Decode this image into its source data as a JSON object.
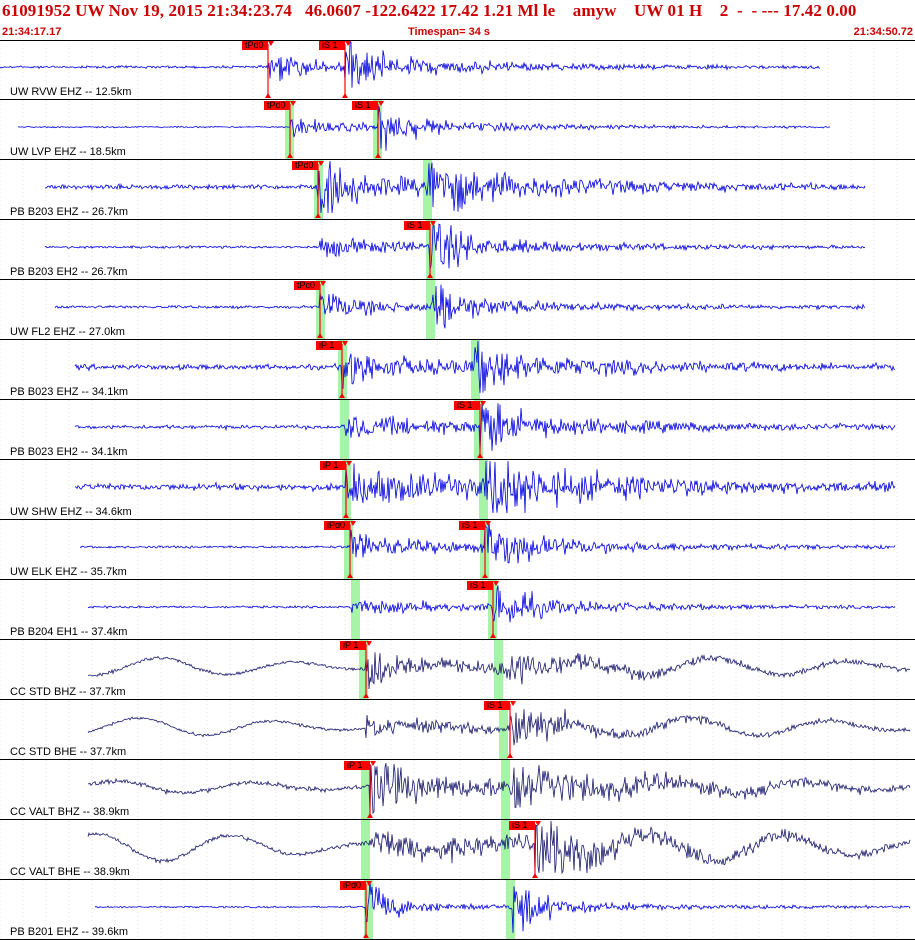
{
  "header": {
    "title": "61091952 UW Nov 19, 2015 21:34:23.74   46.0607 -122.6422 17.42 1.21 Ml le    amyw    UW 01 H    2  -  - --- 17.42 0.00",
    "start_time": "21:34:17.17",
    "timespan": "Timespan=  34 s",
    "end_time": "21:34:50.72"
  },
  "colors": {
    "accent_red": "#cc0000",
    "trace_blue": "#0000e0",
    "trace_navy": "#1a1a6e",
    "window_green": "#a6f5a6",
    "pick_red": "#ff0000"
  },
  "panels": [
    {
      "label": "UW RVW EHZ -- 12.5km",
      "color": "blue",
      "trace_start": 0,
      "trace_end": 820,
      "p_arrival": 268,
      "s_arrival": 345,
      "p_label": "tPd0",
      "s_label": "iS 1",
      "green": [],
      "p_amp": 8,
      "s_amp": 18,
      "coda": 6,
      "noise": 1.0
    },
    {
      "label": "UW LVP EHZ -- 18.5km",
      "color": "blue",
      "trace_start": 18,
      "trace_end": 830,
      "p_arrival": 290,
      "s_arrival": 378,
      "p_label": "tPd0",
      "s_label": "iS 1",
      "green": [
        289,
        377
      ],
      "p_amp": 6,
      "s_amp": 20,
      "coda": 4,
      "noise": 0.6
    },
    {
      "label": "PB B203 EHZ -- 26.7km",
      "color": "blue",
      "trace_start": 45,
      "trace_end": 865,
      "p_arrival": 318,
      "s_arrival": 427,
      "p_label": "tPd0",
      "s_label": "",
      "green": [
        318,
        427
      ],
      "p_amp": 22,
      "s_amp": 24,
      "coda": 10,
      "noise": 2.0
    },
    {
      "label": "PB B203 EH2 -- 26.7km",
      "color": "blue",
      "trace_start": 45,
      "trace_end": 865,
      "p_arrival": 320,
      "s_arrival": 430,
      "p_label": "",
      "s_label": "iS 1",
      "green": [
        430
      ],
      "p_amp": 3,
      "s_amp": 22,
      "coda": 6,
      "noise": 1.0
    },
    {
      "label": "UW FL2 EHZ -- 27.0km",
      "color": "blue",
      "trace_start": 55,
      "trace_end": 865,
      "p_arrival": 320,
      "s_arrival": 432,
      "p_label": "tPc0",
      "s_label": "",
      "green": [
        320,
        430
      ],
      "p_amp": 12,
      "s_amp": 20,
      "coda": 5,
      "noise": 1.2
    },
    {
      "label": "PB B023 EHZ -- 34.1km",
      "color": "blue",
      "trace_start": 75,
      "trace_end": 895,
      "p_arrival": 342,
      "s_arrival": 475,
      "p_label": "iP 1",
      "s_label": "",
      "green": [
        342,
        475
      ],
      "p_amp": 18,
      "s_amp": 16,
      "coda": 8,
      "noise": 2.2
    },
    {
      "label": "PB B023 EH2 -- 34.1km",
      "color": "blue",
      "trace_start": 75,
      "trace_end": 895,
      "p_arrival": 344,
      "s_arrival": 480,
      "p_label": "",
      "s_label": "iS 1",
      "green": [
        344,
        478
      ],
      "p_amp": 3,
      "s_amp": 22,
      "coda": 8,
      "noise": 1.6
    },
    {
      "label": "UW SHW EHZ -- 34.6km",
      "color": "blue",
      "trace_start": 75,
      "trace_end": 895,
      "p_arrival": 346,
      "s_arrival": 483,
      "p_label": "iP 1",
      "s_label": "",
      "green": [
        346,
        483
      ],
      "p_amp": 6,
      "s_amp": 26,
      "coda": 14,
      "noise": 2.8
    },
    {
      "label": "UW ELK EHZ -- 35.7km",
      "color": "blue",
      "trace_start": 80,
      "trace_end": 895,
      "p_arrival": 350,
      "s_arrival": 485,
      "p_label": "iPd0",
      "s_label": "iS 1",
      "green": [
        348,
        484
      ],
      "p_amp": 12,
      "s_amp": 22,
      "coda": 7,
      "noise": 1.0
    },
    {
      "label": "PB B204 EH1 -- 37.4km",
      "color": "blue",
      "trace_start": 88,
      "trace_end": 895,
      "p_arrival": 352,
      "s_arrival": 493,
      "p_label": "",
      "s_label": "iS 1",
      "green": [
        355,
        492
      ],
      "p_amp": 3,
      "s_amp": 22,
      "coda": 5,
      "noise": 0.9
    },
    {
      "label": "CC STD BHZ -- 37.7km",
      "color": "navy",
      "trace_start": 88,
      "trace_end": 910,
      "p_arrival": 366,
      "s_arrival": 500,
      "p_label": "iP 1",
      "s_label": "",
      "green": [
        363,
        498
      ],
      "p_amp": 18,
      "s_amp": 12,
      "coda": 7,
      "noise": 1.5,
      "swell": 9
    },
    {
      "label": "CC STD BHE -- 37.7km",
      "color": "navy",
      "trace_start": 88,
      "trace_end": 910,
      "p_arrival": 366,
      "s_arrival": 510,
      "p_label": "",
      "s_label": "iS 1",
      "green": [
        503
      ],
      "p_amp": 4,
      "s_amp": 24,
      "coda": 6,
      "noise": 1.2,
      "swell": 9
    },
    {
      "label": "CC VALT BHZ -- 38.9km",
      "color": "navy",
      "trace_start": 88,
      "trace_end": 910,
      "p_arrival": 370,
      "s_arrival": 510,
      "p_label": "iP 1",
      "s_label": "",
      "green": [
        365,
        505
      ],
      "p_amp": 18,
      "s_amp": 20,
      "coda": 12,
      "noise": 2.0,
      "swell": 6
    },
    {
      "label": "CC VALT BHE -- 38.9km",
      "color": "navy",
      "trace_start": 88,
      "trace_end": 910,
      "p_arrival": 370,
      "s_arrival": 535,
      "p_label": "",
      "s_label": "iS 1",
      "green": [
        365,
        505
      ],
      "p_amp": 6,
      "s_amp": 24,
      "coda": 12,
      "noise": 1.8,
      "swell": 14
    },
    {
      "label": "PB B201 EHZ -- 39.6km",
      "color": "blue",
      "trace_start": 95,
      "trace_end": 910,
      "p_arrival": 366,
      "s_arrival": 512,
      "p_label": "iPd0",
      "s_label": "",
      "green": [
        368,
        510
      ],
      "p_amp": 26,
      "s_amp": 26,
      "coda": 4,
      "noise": 0.7
    }
  ]
}
